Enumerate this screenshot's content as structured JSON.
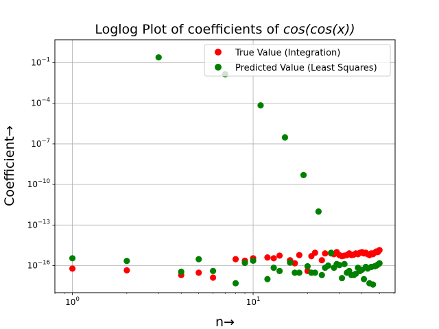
{
  "chart_data": {
    "type": "scatter",
    "title": "Loglog Plot of coefficients of cos(cos(x))",
    "title_parts": {
      "prefix": "Loglog Plot of coefficients of ",
      "formula": "cos(cos(x))"
    },
    "xlabel": "n→",
    "ylabel": "Coefficient→",
    "xscale": "log",
    "yscale": "log",
    "xlim": [
      0.8,
      61
    ],
    "ylim": [
      1e-18,
      5
    ],
    "x_ticks": [
      {
        "value": 1,
        "base": "10",
        "exp": "0"
      },
      {
        "value": 10,
        "base": "10",
        "exp": "1"
      }
    ],
    "y_ticks": [
      {
        "value": 1e-16,
        "base": "10",
        "exp": "−16"
      },
      {
        "value": 1e-13,
        "base": "10",
        "exp": "−13"
      },
      {
        "value": 1e-10,
        "base": "10",
        "exp": "−10"
      },
      {
        "value": 1e-07,
        "base": "10",
        "exp": "−7"
      },
      {
        "value": 0.0001,
        "base": "10",
        "exp": "−4"
      },
      {
        "value": 0.1,
        "base": "10",
        "exp": "−1"
      }
    ],
    "grid": true,
    "legend_position": "top-right",
    "series": [
      {
        "name": "True Value (Integration)",
        "color": "#ff0000",
        "points": [
          [
            1,
            6e-17
          ],
          [
            2,
            4.5e-17
          ],
          [
            4,
            2e-17
          ],
          [
            5,
            3e-17
          ],
          [
            6,
            1.3e-17
          ],
          [
            8,
            3e-16
          ],
          [
            9,
            2.3e-16
          ],
          [
            10,
            3.5e-16
          ],
          [
            12,
            4e-16
          ],
          [
            13,
            3.5e-16
          ],
          [
            14,
            5.5e-16
          ],
          [
            16,
            2.5e-16
          ],
          [
            17,
            1.5e-16
          ],
          [
            18,
            6e-16
          ],
          [
            20,
            4e-17
          ],
          [
            21,
            5e-16
          ],
          [
            22,
            9e-16
          ],
          [
            24,
            2.5e-16
          ],
          [
            25,
            8e-16
          ],
          [
            27,
            8e-16
          ],
          [
            28,
            7e-16
          ],
          [
            29,
            1e-15
          ],
          [
            30,
            6e-16
          ],
          [
            31,
            5e-16
          ],
          [
            32,
            5.5e-16
          ],
          [
            33,
            6e-16
          ],
          [
            34,
            8e-16
          ],
          [
            35,
            6e-16
          ],
          [
            36,
            6.5e-16
          ],
          [
            37,
            8e-16
          ],
          [
            38,
            7e-16
          ],
          [
            39,
            9e-16
          ],
          [
            40,
            1e-15
          ],
          [
            41,
            8e-16
          ],
          [
            42,
            9e-16
          ],
          [
            43,
            7e-16
          ],
          [
            44,
            6e-16
          ],
          [
            45,
            8e-16
          ],
          [
            46,
            7e-16
          ],
          [
            47,
            9e-16
          ],
          [
            48,
            1.1e-15
          ],
          [
            49,
            1e-15
          ],
          [
            50,
            1.4e-15
          ]
        ]
      },
      {
        "name": "Predicted Value (Least Squares)",
        "color": "#008000",
        "points": [
          [
            1,
            3.5e-16
          ],
          [
            2,
            2.2e-16
          ],
          [
            3,
            0.25
          ],
          [
            4,
            3.5e-17
          ],
          [
            5,
            3e-16
          ],
          [
            6,
            4e-17
          ],
          [
            7,
            0.014
          ],
          [
            8,
            5e-18
          ],
          [
            9,
            1.6e-16
          ],
          [
            10,
            2.3e-16
          ],
          [
            11,
            7e-05
          ],
          [
            12,
            1e-17
          ],
          [
            13,
            7e-17
          ],
          [
            14,
            4e-17
          ],
          [
            15,
            3e-07
          ],
          [
            16,
            1.7e-16
          ],
          [
            17,
            3e-17
          ],
          [
            18,
            3e-17
          ],
          [
            19,
            5e-10
          ],
          [
            20,
            9e-17
          ],
          [
            21,
            3e-17
          ],
          [
            22,
            3e-17
          ],
          [
            23,
            1e-12
          ],
          [
            24,
            2e-17
          ],
          [
            25,
            7e-17
          ],
          [
            26,
            1e-16
          ],
          [
            27,
            9e-16
          ],
          [
            28,
            7e-17
          ],
          [
            29,
            1.3e-16
          ],
          [
            30,
            1.1e-16
          ],
          [
            31,
            1.2e-17
          ],
          [
            32,
            1.3e-16
          ],
          [
            33,
            3e-17
          ],
          [
            34,
            4e-17
          ],
          [
            35,
            2e-17
          ],
          [
            36,
            2e-17
          ],
          [
            37,
            2.5e-17
          ],
          [
            38,
            7e-17
          ],
          [
            39,
            4e-17
          ],
          [
            40,
            5e-17
          ],
          [
            41,
            1e-17
          ],
          [
            42,
            8e-17
          ],
          [
            43,
            6e-17
          ],
          [
            44,
            5e-18
          ],
          [
            45,
            8e-17
          ],
          [
            46,
            4e-18
          ],
          [
            47,
            9e-17
          ],
          [
            48,
            1e-16
          ],
          [
            49,
            1.2e-16
          ],
          [
            50,
            1.5e-16
          ]
        ]
      }
    ]
  }
}
